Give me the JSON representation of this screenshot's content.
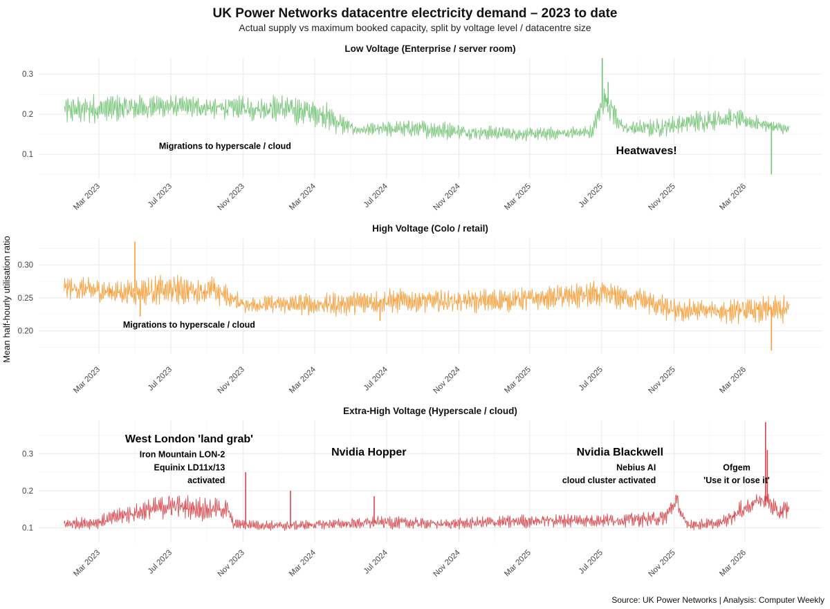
{
  "header": {
    "title": "UK Power Networks datacentre electricity demand – 2023 to date",
    "subtitle": "Actual supply vs maximum booked capacity, split by voltage level / datacentre size"
  },
  "y_axis_label": "Mean half-hourly utilisation ratio",
  "source": "Source: UK Power Networks | Analysis: Computer Weekly",
  "chart_data": [
    {
      "type": "line",
      "title": "Low Voltage (Enterprise / server room)",
      "color": "#74c476",
      "x_tick_labels": [
        "Mar 2023",
        "Jul 2023",
        "Nov 2023",
        "Mar 2024",
        "Jul 2024",
        "Nov 2024",
        "Mar 2025",
        "Jul 2025",
        "Nov 2025",
        "Mar 2026"
      ],
      "y_ticks": [
        0.1,
        0.2,
        0.3
      ],
      "ylim": [
        0.04,
        0.34
      ],
      "xlim": [
        "2022-12-01",
        "2026-05-31"
      ],
      "grid": true,
      "series": [
        {
          "x": [
            "2023-01-01",
            "2023-04-01",
            "2023-07-01",
            "2023-10-01",
            "2024-01-01",
            "2024-03-15",
            "2024-04-15",
            "2024-05-15",
            "2024-08-01",
            "2024-10-01",
            "2024-12-01",
            "2025-03-01",
            "2025-06-15",
            "2025-07-05",
            "2025-07-20",
            "2025-08-05",
            "2025-10-01",
            "2025-12-01",
            "2026-02-01",
            "2026-04-01",
            "2026-05-15"
          ],
          "values": [
            0.21,
            0.215,
            0.22,
            0.215,
            0.215,
            0.2,
            0.175,
            0.16,
            0.165,
            0.16,
            0.155,
            0.15,
            0.155,
            0.24,
            0.21,
            0.165,
            0.165,
            0.18,
            0.19,
            0.175,
            0.16
          ],
          "band": [
            0.04,
            0.04,
            0.03,
            0.03,
            0.04,
            0.04,
            0.03,
            0.015,
            0.025,
            0.025,
            0.02,
            0.018,
            0.02,
            0.04,
            0.04,
            0.02,
            0.025,
            0.03,
            0.03,
            0.02,
            0.015
          ],
          "spikes": [
            {
              "x": "2025-07-02",
              "value": 0.34
            },
            {
              "x": "2025-07-12",
              "value": 0.28
            },
            {
              "x": "2026-04-15",
              "value": 0.05
            }
          ]
        }
      ],
      "annotations": [
        {
          "text": "Migrations to hyperscale / cloud",
          "x": "2023-10-01",
          "y": 0.113,
          "size": "small",
          "align": "middle"
        },
        {
          "text": "Heatwaves!",
          "x": "2025-09-15",
          "y": 0.1,
          "size": "large",
          "align": "middle"
        }
      ]
    },
    {
      "type": "line",
      "title": "High Voltage (Colo / retail)",
      "color": "#f99b32",
      "x_tick_labels": [
        "Mar 2023",
        "Jul 2023",
        "Nov 2023",
        "Mar 2024",
        "Jul 2024",
        "Nov 2024",
        "Mar 2025",
        "Jul 2025",
        "Nov 2025",
        "Mar 2026"
      ],
      "y_ticks": [
        0.2,
        0.25,
        0.3
      ],
      "ylim": [
        0.165,
        0.34
      ],
      "xlim": [
        "2022-12-01",
        "2026-05-31"
      ],
      "grid": true,
      "series": [
        {
          "x": [
            "2023-01-01",
            "2023-04-01",
            "2023-07-01",
            "2023-09-15",
            "2023-11-01",
            "2024-01-01",
            "2024-04-01",
            "2024-07-01",
            "2024-10-01",
            "2025-01-01",
            "2025-04-01",
            "2025-07-01",
            "2025-09-01",
            "2025-11-01",
            "2026-01-01",
            "2026-03-01",
            "2026-05-15"
          ],
          "values": [
            0.265,
            0.258,
            0.262,
            0.26,
            0.24,
            0.24,
            0.24,
            0.245,
            0.245,
            0.245,
            0.25,
            0.255,
            0.248,
            0.23,
            0.23,
            0.23,
            0.232
          ],
          "band": [
            0.02,
            0.02,
            0.025,
            0.025,
            0.015,
            0.015,
            0.02,
            0.02,
            0.02,
            0.02,
            0.02,
            0.025,
            0.02,
            0.02,
            0.02,
            0.02,
            0.025
          ],
          "spikes": [
            {
              "x": "2023-05-01",
              "value": 0.335
            },
            {
              "x": "2023-05-10",
              "value": 0.222
            },
            {
              "x": "2024-06-20",
              "value": 0.215
            },
            {
              "x": "2026-04-15",
              "value": 0.17
            }
          ]
        }
      ],
      "annotations": [
        {
          "text": "Migrations to hyperscale / cloud",
          "x": "2023-08-01",
          "y": 0.205,
          "size": "small",
          "align": "middle"
        }
      ]
    },
    {
      "type": "line",
      "title": "Extra-High Voltage (Hyperscale / cloud)",
      "color": "#d7444a",
      "x_tick_labels": [
        "Mar 2023",
        "Jul 2023",
        "Nov 2023",
        "Mar 2024",
        "Jul 2024",
        "Nov 2024",
        "Mar 2025",
        "Jul 2025",
        "Nov 2025",
        "Mar 2026"
      ],
      "y_ticks": [
        0.1,
        0.2,
        0.3
      ],
      "ylim": [
        0.06,
        0.39
      ],
      "xlim": [
        "2022-12-01",
        "2026-05-31"
      ],
      "grid": true,
      "series": [
        {
          "x": [
            "2023-01-01",
            "2023-03-01",
            "2023-04-01",
            "2023-05-15",
            "2023-07-01",
            "2023-09-01",
            "2023-10-05",
            "2023-10-15",
            "2024-01-01",
            "2024-04-01",
            "2024-07-01",
            "2024-10-01",
            "2025-01-01",
            "2025-04-01",
            "2025-07-01",
            "2025-10-15",
            "2025-11-05",
            "2025-11-20",
            "2026-01-15",
            "2026-02-15",
            "2026-03-25",
            "2026-04-10",
            "2026-04-25",
            "2026-05-15"
          ],
          "values": [
            0.11,
            0.115,
            0.13,
            0.145,
            0.16,
            0.15,
            0.15,
            0.11,
            0.105,
            0.11,
            0.115,
            0.11,
            0.115,
            0.12,
            0.12,
            0.125,
            0.175,
            0.11,
            0.11,
            0.14,
            0.175,
            0.17,
            0.14,
            0.15
          ],
          "band": [
            0.015,
            0.02,
            0.025,
            0.03,
            0.035,
            0.035,
            0.03,
            0.015,
            0.015,
            0.015,
            0.02,
            0.015,
            0.02,
            0.02,
            0.02,
            0.025,
            0.03,
            0.02,
            0.015,
            0.03,
            0.02,
            0.03,
            0.03,
            0.03
          ],
          "spikes": [
            {
              "x": "2023-11-05",
              "value": 0.25
            },
            {
              "x": "2024-01-20",
              "value": 0.2
            },
            {
              "x": "2024-06-10",
              "value": 0.185
            },
            {
              "x": "2026-04-05",
              "value": 0.385
            },
            {
              "x": "2026-04-08",
              "value": 0.31
            }
          ]
        }
      ],
      "annotations": [
        {
          "text": "West London 'land grab'",
          "x": "2023-08-01",
          "y": 0.33,
          "size": "large",
          "align": "middle"
        },
        {
          "text": "Iron Mountain LON-2",
          "x": "2023-10-01",
          "y": 0.29,
          "size": "small",
          "align": "end"
        },
        {
          "text": "Equinix LD11x/13",
          "x": "2023-10-01",
          "y": 0.255,
          "size": "small",
          "align": "end"
        },
        {
          "text": "activated",
          "x": "2023-10-01",
          "y": 0.22,
          "size": "small",
          "align": "end"
        },
        {
          "text": "Nvidia Hopper",
          "x": "2024-06-01",
          "y": 0.295,
          "size": "large",
          "align": "middle"
        },
        {
          "text": "Nvidia Blackwell",
          "x": "2025-08-01",
          "y": 0.295,
          "size": "large",
          "align": "middle"
        },
        {
          "text": "Nebius AI",
          "x": "2025-10-01",
          "y": 0.255,
          "size": "small",
          "align": "end"
        },
        {
          "text": "cloud cluster activated",
          "x": "2025-10-01",
          "y": 0.22,
          "size": "small",
          "align": "end"
        },
        {
          "text": "Ofgem",
          "x": "2026-02-15",
          "y": 0.255,
          "size": "small",
          "align": "middle"
        },
        {
          "text": "'Use it or lose it'",
          "x": "2026-02-15",
          "y": 0.22,
          "size": "small",
          "align": "middle"
        }
      ]
    }
  ]
}
